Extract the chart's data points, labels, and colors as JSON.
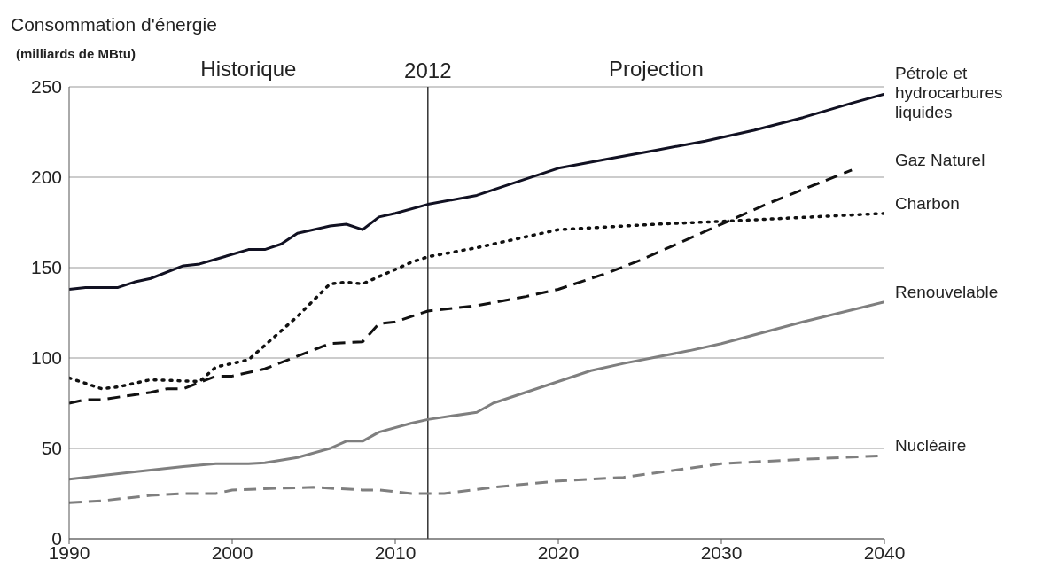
{
  "chart_data": {
    "type": "line",
    "title": "Consommation d'énergie",
    "ylabel": "(milliards de MBtu)",
    "annotations": [
      "Historique",
      "Projection"
    ],
    "xlim": [
      1990,
      2040
    ],
    "xticks": [
      1990,
      2000,
      2010,
      2020,
      2030,
      2040
    ],
    "ylim": [
      0,
      250
    ],
    "yticks": [
      0,
      50,
      100,
      150,
      200,
      250
    ],
    "grid": "y",
    "legend": false,
    "ref_lines": [
      {
        "axis": "x",
        "value": 2012,
        "label": "2012",
        "color": "#333333"
      }
    ],
    "series": [
      {
        "name": "Pétrole et hydrocarbures liquides",
        "color": "#111122",
        "line_style": "solid",
        "x": [
          1990,
          1991,
          1993,
          1994,
          1995,
          1997,
          1998,
          2001,
          2002,
          2003,
          2004,
          2006,
          2007,
          2008,
          2009,
          2010,
          2012,
          2015,
          2017,
          2020,
          2023,
          2026,
          2029,
          2032,
          2035,
          2038,
          2040
        ],
        "values": [
          138,
          139,
          139,
          142,
          144,
          151,
          152,
          160,
          160,
          163,
          169,
          173,
          174,
          171,
          178,
          180,
          185,
          190,
          196,
          205,
          210,
          215,
          220,
          226,
          233,
          241,
          246
        ]
      },
      {
        "name": "Gaz Naturel",
        "color": "#111111",
        "line_style": "dashed",
        "x": [
          1990,
          1991,
          1992,
          1995,
          1996,
          1997,
          1999,
          2000,
          2002,
          2004,
          2006,
          2008,
          2009,
          2010,
          2012,
          2015,
          2018,
          2020,
          2023,
          2025,
          2027,
          2029,
          2031,
          2033,
          2038
        ],
        "values": [
          75,
          77,
          77,
          81,
          83,
          83,
          90,
          90,
          94,
          101,
          108,
          109,
          119,
          120,
          126,
          129,
          134,
          138,
          147,
          154,
          162,
          170,
          178,
          186,
          204
        ]
      },
      {
        "name": "Charbon",
        "color": "#111111",
        "line_style": "dotted",
        "x": [
          1990,
          1992,
          1993,
          1995,
          1998,
          1999,
          2001,
          2002,
          2004,
          2006,
          2007,
          2008,
          2010,
          2011,
          2012,
          2015,
          2020,
          2026,
          2031,
          2040
        ],
        "values": [
          89,
          83,
          84,
          88,
          87,
          95,
          99,
          107,
          123,
          141,
          142,
          141,
          149,
          153,
          156,
          161,
          171,
          174,
          176,
          180
        ]
      },
      {
        "name": "Renouvelable",
        "color": "#7f7f7f",
        "line_style": "solid",
        "x": [
          1990,
          1994,
          1995,
          1997,
          1999,
          2001,
          2002,
          2004,
          2006,
          2007,
          2008,
          2009,
          2011,
          2012,
          2015,
          2016,
          2018,
          2020,
          2022,
          2024,
          2028,
          2030,
          2035,
          2040
        ],
        "values": [
          33,
          37,
          38,
          40,
          41.5,
          41.5,
          42,
          45,
          50,
          54,
          54,
          59,
          64,
          66,
          70,
          75,
          81,
          87,
          93,
          97,
          104,
          108,
          120,
          131
        ]
      },
      {
        "name": "Nucléaire",
        "color": "#7f7f7f",
        "line_style": "dashed",
        "x": [
          1990,
          1992,
          1995,
          1997,
          1999,
          2000,
          2003,
          2005,
          2008,
          2009,
          2011,
          2012,
          2013,
          2016,
          2020,
          2024,
          2030,
          2035,
          2040
        ],
        "values": [
          20,
          21,
          24,
          25,
          25,
          27,
          28,
          28.5,
          27,
          27,
          25,
          25,
          25,
          28.5,
          32,
          34,
          41.5,
          44,
          46
        ]
      }
    ]
  }
}
